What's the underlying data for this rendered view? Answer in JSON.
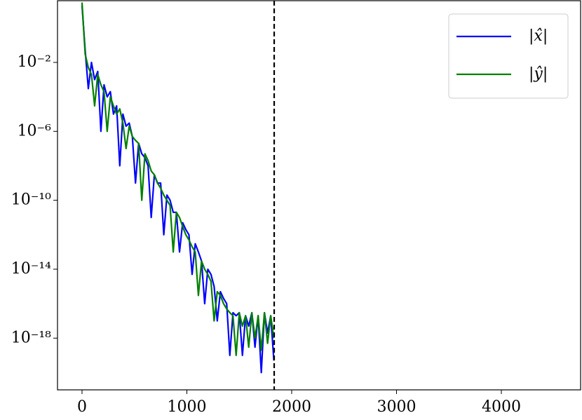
{
  "chart_data": {
    "type": "line",
    "x": [
      0,
      30,
      60,
      90,
      120,
      150,
      180,
      210,
      240,
      270,
      300,
      330,
      360,
      390,
      420,
      450,
      480,
      510,
      540,
      570,
      600,
      630,
      660,
      690,
      720,
      750,
      780,
      810,
      840,
      870,
      900,
      930,
      960,
      990,
      1020,
      1050,
      1080,
      1110,
      1140,
      1170,
      1200,
      1230,
      1260,
      1290,
      1320,
      1350,
      1380,
      1410,
      1440,
      1470,
      1500,
      1530,
      1560,
      1590,
      1620,
      1650,
      1680,
      1710,
      1740,
      1770,
      1800,
      1830
    ],
    "series": [
      {
        "name": "|x̂|",
        "color": "#0000ff",
        "values": [
          20,
          0.05,
          0.0003,
          0.01,
          0.001,
          0.003,
          1e-06,
          0.0005,
          0.0001,
          0.0002,
          1e-05,
          3e-05,
          1e-08,
          1e-05,
          2e-06,
          3e-06,
          5e-07,
          1e-09,
          2e-07,
          5e-08,
          3e-08,
          1e-08,
          1e-11,
          3e-09,
          1e-09,
          1e-09,
          1e-12,
          2e-10,
          1e-10,
          2e-11,
          2e-11,
          1e-13,
          5e-12,
          2e-12,
          1e-12,
          5e-15,
          3e-13,
          1e-13,
          3e-14,
          1e-16,
          1e-14,
          5e-15,
          1e-15,
          1e-17,
          5e-16,
          2e-16,
          1e-16,
          1e-19,
          3e-17,
          2e-17,
          3e-17,
          1e-19,
          2e-17,
          5e-18,
          3e-17,
          3e-19,
          2e-17,
          1e-20,
          3e-17,
          2e-18,
          2e-17,
          5e-20
        ]
      },
      {
        "name": "|ŷ|",
        "color": "#008000",
        "values": [
          30,
          0.03,
          0.005,
          0.002,
          3e-05,
          0.002,
          0.0005,
          0.0002,
          1e-06,
          0.0001,
          3e-05,
          1e-05,
          2e-05,
          3e-06,
          1e-07,
          2e-06,
          5e-07,
          3e-07,
          2e-07,
          1e-10,
          5e-08,
          2e-08,
          5e-09,
          3e-09,
          1e-09,
          5e-10,
          2e-10,
          1e-10,
          5e-11,
          1e-13,
          2e-11,
          1e-11,
          3e-12,
          1e-12,
          5e-13,
          2e-13,
          1e-13,
          3e-16,
          3e-14,
          1e-14,
          5e-15,
          2e-15,
          1e-17,
          5e-16,
          3e-16,
          1e-16,
          5e-17,
          3e-17,
          2e-17,
          1e-19,
          3e-17,
          5e-18,
          2e-17,
          3e-19,
          3e-17,
          1e-18,
          2e-17,
          2e-19,
          3e-17,
          5e-19,
          2e-17,
          1e-18
        ]
      }
    ],
    "xlim": [
      -234,
      4756
    ],
    "xticks": [
      0,
      1000,
      2000,
      3000,
      4000
    ],
    "ylim": [
      1e-21,
      38
    ],
    "ylog": true,
    "yticks": [
      {
        "value": 0.01,
        "label": "10⁻²"
      },
      {
        "value": 1e-06,
        "label": "10⁻⁶"
      },
      {
        "value": 1e-10,
        "label": "10⁻¹⁰"
      },
      {
        "value": 1e-14,
        "label": "10⁻¹⁴"
      },
      {
        "value": 1e-18,
        "label": "10⁻¹⁸"
      }
    ],
    "vline_x": 1833,
    "legend": "upper right"
  }
}
